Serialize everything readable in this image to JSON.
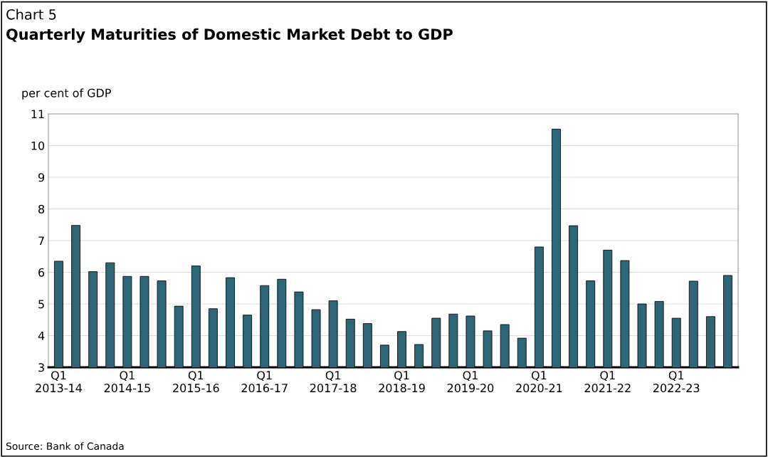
{
  "chart_data": {
    "type": "bar",
    "title": "Quarterly Maturities of Domestic Market Debt to GDP",
    "subtitle": "Chart 5",
    "ylabel": "per cent of GDP",
    "categories": [
      "Q1\n2013-14",
      null,
      null,
      null,
      "Q1\n2014-15",
      null,
      null,
      null,
      "Q1\n2015-16",
      null,
      null,
      null,
      "Q1\n2016-17",
      null,
      null,
      null,
      "Q1\n2017-18",
      null,
      null,
      null,
      "Q1\n2018-19",
      null,
      null,
      null,
      "Q1\n2019-20",
      null,
      null,
      null,
      "Q1\n2020-21",
      null,
      null,
      null,
      "Q1\n2021-22",
      null,
      null,
      null,
      "Q1\n2022-23",
      null,
      null,
      null
    ],
    "values": [
      6.35,
      7.48,
      6.02,
      6.3,
      5.87,
      5.87,
      5.73,
      4.93,
      6.2,
      4.85,
      5.83,
      4.65,
      5.58,
      5.78,
      5.38,
      4.82,
      5.1,
      4.52,
      4.38,
      3.7,
      4.13,
      3.72,
      4.55,
      4.68,
      4.62,
      4.15,
      4.35,
      3.92,
      6.8,
      10.52,
      7.47,
      5.73,
      6.7,
      6.37,
      5.0,
      5.08,
      4.55,
      5.72,
      4.6,
      5.9
    ],
    "color": "#2e6677",
    "ylim": [
      3,
      11
    ],
    "yticks": [
      3,
      4,
      5,
      6,
      7,
      8,
      9,
      10,
      11
    ],
    "grid": "y",
    "annotations": [
      "Source: Bank of Canada"
    ]
  }
}
